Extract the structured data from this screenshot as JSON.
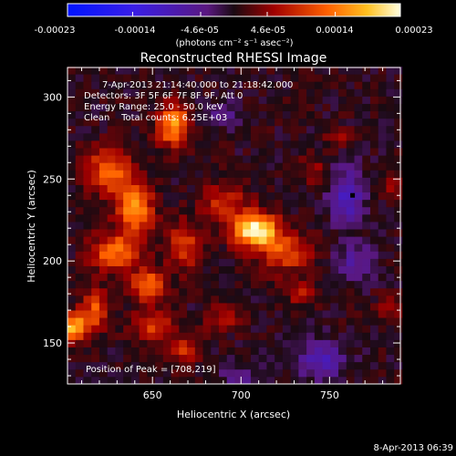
{
  "colorbar": {
    "tick_labels": [
      "-0.00023",
      "-0.00014",
      "-4.6e-05",
      "4.6e-05",
      "0.00014",
      "0.00023"
    ],
    "units_label": "(photons cm⁻² s⁻¹ asec⁻²)",
    "range": [
      -0.00023,
      0.00023
    ]
  },
  "chart_data": {
    "type": "heatmap",
    "title": "Reconstructed RHESSI Image",
    "xlabel": "Heliocentric X (arcsec)",
    "ylabel": "Heliocentric Y (arcsec)",
    "xlim": [
      602,
      790
    ],
    "ylim": [
      125,
      318
    ],
    "x_ticks": [
      650,
      700,
      750
    ],
    "y_ticks": [
      150,
      200,
      250,
      300
    ],
    "annotations": [
      "7-Apr-2013 21:14:40.000 to 21:18:42.000",
      "Detectors: 3F 5F 6F 7F 8F 9F, Att 0",
      "Energy Range: 25.0 - 50.0 keV",
      "Clean    Total counts: 6.25E+03",
      "Position of Peak = [708,219]"
    ],
    "peak": {
      "x": 708,
      "y": 219
    },
    "marker": {
      "x": 763,
      "y": 240
    },
    "sources": [
      {
        "x": 708,
        "y": 219,
        "amp": 1.0,
        "sx": 9,
        "sy": 7
      },
      {
        "x": 725,
        "y": 205,
        "amp": 0.45,
        "sx": 10,
        "sy": 8
      },
      {
        "x": 690,
        "y": 236,
        "amp": 0.35,
        "sx": 9,
        "sy": 8
      },
      {
        "x": 662,
        "y": 283,
        "amp": 0.7,
        "sx": 6,
        "sy": 9
      },
      {
        "x": 625,
        "y": 255,
        "amp": 0.55,
        "sx": 8,
        "sy": 10
      },
      {
        "x": 640,
        "y": 232,
        "amp": 0.65,
        "sx": 7,
        "sy": 12
      },
      {
        "x": 628,
        "y": 205,
        "amp": 0.55,
        "sx": 9,
        "sy": 8
      },
      {
        "x": 648,
        "y": 185,
        "amp": 0.55,
        "sx": 7,
        "sy": 7
      },
      {
        "x": 668,
        "y": 210,
        "amp": 0.4,
        "sx": 7,
        "sy": 10
      },
      {
        "x": 606,
        "y": 160,
        "amp": 0.75,
        "sx": 5,
        "sy": 6
      },
      {
        "x": 618,
        "y": 170,
        "amp": 0.5,
        "sx": 5,
        "sy": 8
      },
      {
        "x": 650,
        "y": 160,
        "amp": 0.4,
        "sx": 8,
        "sy": 6
      },
      {
        "x": 668,
        "y": 145,
        "amp": 0.35,
        "sx": 6,
        "sy": 6
      },
      {
        "x": 690,
        "y": 165,
        "amp": 0.3,
        "sx": 7,
        "sy": 5
      },
      {
        "x": 735,
        "y": 180,
        "amp": 0.25,
        "sx": 7,
        "sy": 5
      },
      {
        "x": 740,
        "y": 255,
        "amp": 0.2,
        "sx": 6,
        "sy": 6
      },
      {
        "x": 755,
        "y": 275,
        "amp": 0.18,
        "sx": 5,
        "sy": 5
      },
      {
        "x": 785,
        "y": 245,
        "amp": 0.2,
        "sx": 5,
        "sy": 5
      },
      {
        "x": 783,
        "y": 170,
        "amp": 0.22,
        "sx": 5,
        "sy": 6
      },
      {
        "x": 760,
        "y": 240,
        "amp": -0.4,
        "sx": 7,
        "sy": 12
      },
      {
        "x": 745,
        "y": 140,
        "amp": -0.35,
        "sx": 10,
        "sy": 8
      },
      {
        "x": 765,
        "y": 200,
        "amp": -0.25,
        "sx": 8,
        "sy": 8
      },
      {
        "x": 690,
        "y": 290,
        "amp": -0.2,
        "sx": 8,
        "sy": 6
      },
      {
        "x": 700,
        "y": 130,
        "amp": -0.2,
        "sx": 8,
        "sy": 5
      }
    ]
  },
  "footer": {
    "timestamp": "8-Apr-2013 06:39"
  }
}
